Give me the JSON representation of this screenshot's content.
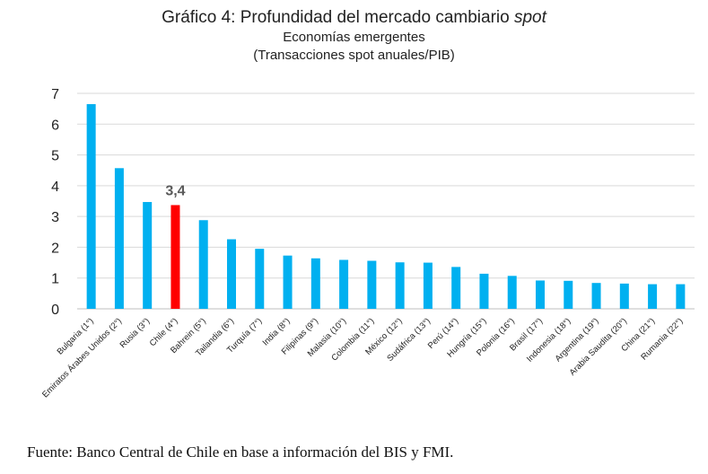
{
  "chart_data": {
    "type": "bar",
    "title_prefix": "Gráfico 4: Profundidad del mercado cambiario ",
    "title_italic": "spot",
    "subtitle_1": "Economías emergentes",
    "subtitle_2": "(Transacciones spot anuales/PIB)",
    "categories": [
      "Bulgaria (1°)",
      "Emiratos Árabes Unidos (2°)",
      "Rusia (3°)",
      "Chile (4°)",
      "Bahrein (5°)",
      "Tailandia (6°)",
      "Turquía (7°)",
      "India (8°)",
      "Filipinas (9°)",
      "Malasia (10°)",
      "Colombia (11°)",
      "México (12°)",
      "Sudáfrica (13°)",
      "Perú (14°)",
      "Hungría (15°)",
      "Polonia (16°)",
      "Brasil (17°)",
      "Indonesia (18°)",
      "Argentina (19°)",
      "Arabia Saudita (20°)",
      "China (21°)",
      "Rumania (22°)"
    ],
    "values": [
      6.65,
      4.57,
      3.47,
      3.37,
      2.88,
      2.26,
      1.95,
      1.73,
      1.64,
      1.59,
      1.56,
      1.51,
      1.5,
      1.36,
      1.14,
      1.07,
      0.92,
      0.91,
      0.84,
      0.82,
      0.8,
      0.8
    ],
    "ylim": [
      0,
      7
    ],
    "yticks": [
      "0",
      "1",
      "2",
      "3",
      "4",
      "5",
      "6",
      "7"
    ],
    "grid": true,
    "bar_color": "#00B0F0",
    "highlight_color": "#FF0000",
    "highlight_index": 3,
    "highlight_label": "3,4",
    "xlabel": "",
    "ylabel": ""
  },
  "source": "Fuente: Banco Central de Chile en base a información del BIS y FMI."
}
